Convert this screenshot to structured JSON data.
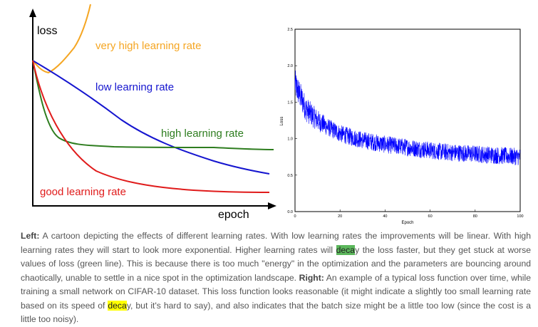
{
  "chart_data": [
    {
      "type": "line",
      "axis": {
        "ylabel": "loss",
        "xlabel": "epoch"
      },
      "series": [
        {
          "name": "very high learning rate",
          "color": "#f5a623"
        },
        {
          "name": "low learning rate",
          "color": "#1515cf"
        },
        {
          "name": "high learning rate",
          "color": "#2e7d1f"
        },
        {
          "name": "good learning rate",
          "color": "#e01b1b"
        }
      ]
    },
    {
      "type": "line",
      "xlabel": "Epoch",
      "ylabel": "Loss",
      "xlim": [
        0,
        100
      ],
      "ylim": [
        0.0,
        2.5
      ],
      "xticks": [
        "0",
        "20",
        "40",
        "60",
        "80",
        "100"
      ],
      "yticks": [
        "0.0",
        "0.5",
        "1.0",
        "1.5",
        "2.0",
        "2.5"
      ],
      "series": [
        {
          "color": "#0000ff",
          "x": [
            0,
            5,
            10,
            15,
            20,
            25,
            30,
            35,
            40,
            45,
            50,
            55,
            60,
            65,
            70,
            75,
            80,
            85,
            90,
            95,
            100
          ],
          "y": [
            1.75,
            1.4,
            1.25,
            1.15,
            1.07,
            1.02,
            0.98,
            0.95,
            0.92,
            0.9,
            0.88,
            0.86,
            0.84,
            0.82,
            0.81,
            0.8,
            0.79,
            0.78,
            0.77,
            0.76,
            0.75
          ]
        }
      ]
    }
  ],
  "caption": {
    "left_label": "Left:",
    "p1": " A cartoon depicting the effects of different learning rates. With low learning rates the improvements will be linear. With high learning rates they will start to look more exponential. Higher learning rates will ",
    "hl1": "deca",
    "p2": "y the loss faster, but they get stuck at worse values of loss (green line). This is because there is too much \"energy\" in the optimization and the parameters are bouncing around chaotically, unable to settle in a nice spot in the optimization landscape. ",
    "right_label": "Right:",
    "p3": " An example of a typical loss function over time, while training a small network on CIFAR-10 dataset. This loss function looks reasonable (it might indicate a slightly too small learning rate based on its speed of ",
    "hl2": "deca",
    "p4": "y, but it's hard to say), and also indicates that the batch size might be a little too low (since the cost is a little too noisy)."
  }
}
